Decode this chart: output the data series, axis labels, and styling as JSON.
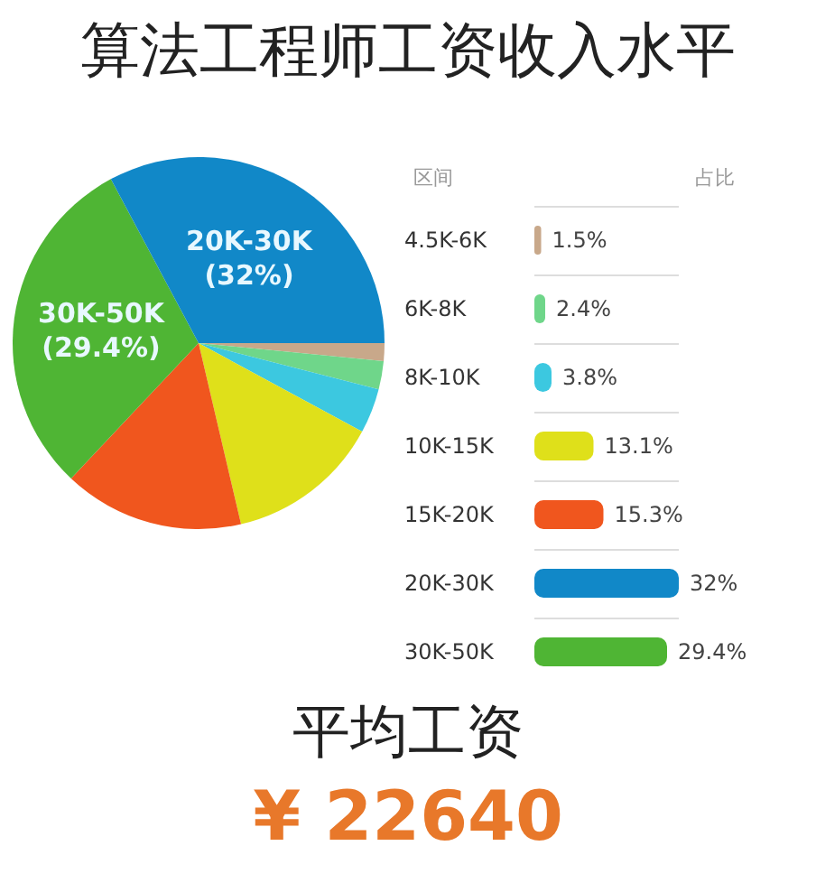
{
  "chart_data": [
    {
      "type": "pie",
      "title": "算法工程师工资收入水平",
      "categories": [
        null,
        null,
        null,
        null,
        null,
        "30K-50K",
        "20K-30K"
      ],
      "values": [
        1.5,
        2.4,
        3.8,
        13.1,
        15.3,
        29.4,
        32
      ],
      "colors": [
        "#c8a88a",
        "#6fd68a",
        "#3cc8e0",
        "#dfe01a",
        "#f0561e",
        "#4fb534",
        "#1188c8"
      ],
      "value_labels": [
        null,
        null,
        null,
        null,
        null,
        "(29.4%)",
        "(32%)"
      ],
      "legend": false
    },
    {
      "type": "bar",
      "orientation": "horizontal",
      "ylabel": "区间",
      "xlabel": "占比",
      "categories": [
        "4.5K-6K",
        "6K-8K",
        "8K-10K",
        "10K-15K",
        "15K-20K",
        "20K-30K",
        "30K-50K"
      ],
      "values": [
        1.5,
        2.4,
        3.8,
        13.1,
        15.3,
        32,
        29.4
      ],
      "colors": [
        "#c8a88a",
        "#6fd68a",
        "#3cc8e0",
        "#dfe01a",
        "#f0561e",
        "#1188c8",
        "#4fb534"
      ],
      "value_labels": [
        "1.5%",
        "2.4%",
        "3.8%",
        "13.1%",
        "15.3%",
        "32%",
        "29.4%"
      ],
      "grid": "y",
      "legend": false
    },
    {
      "type": "other",
      "annotations": [
        "平均工资",
        "¥ 22640"
      ]
    }
  ]
}
